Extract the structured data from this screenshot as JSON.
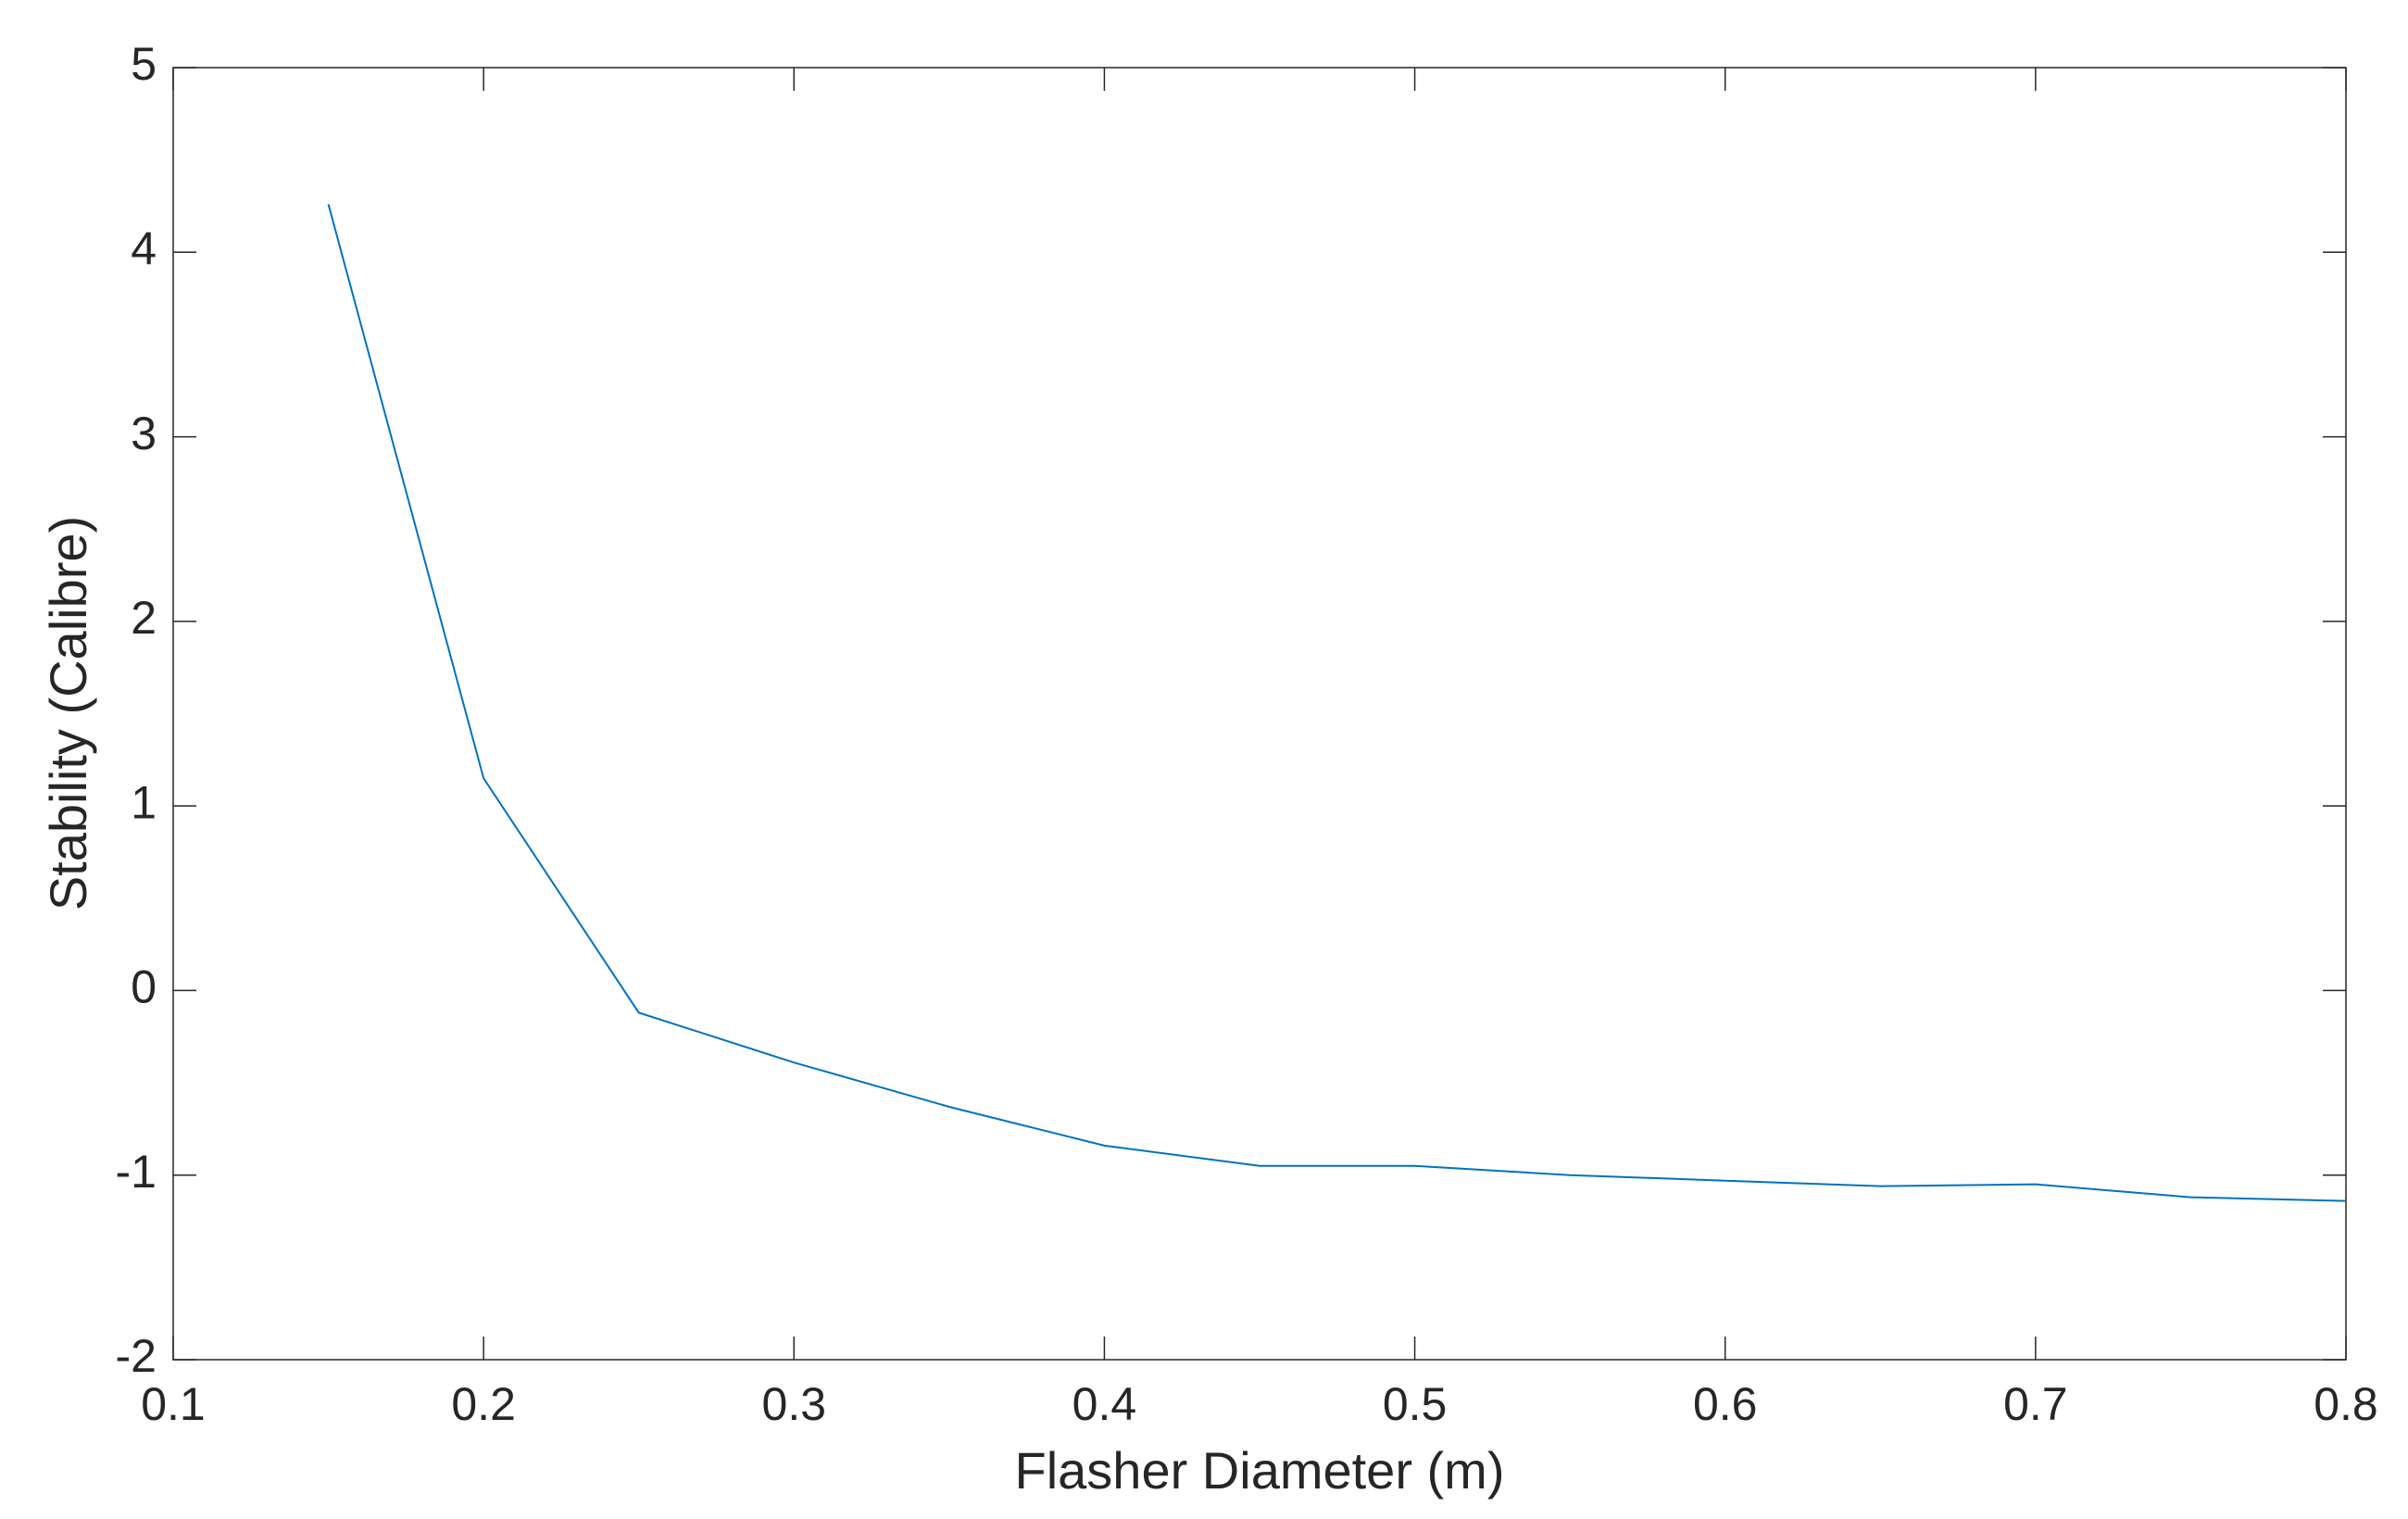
{
  "chart_data": {
    "type": "line",
    "x_label": "Flasher Diameter (m)",
    "y_label": "Stability (Calibre)",
    "x": [
      0.15,
      0.2,
      0.25,
      0.3,
      0.35,
      0.4,
      0.45,
      0.5,
      0.55,
      0.6,
      0.65,
      0.7,
      0.75,
      0.8
    ],
    "series": [
      {
        "color": "#0072bd",
        "values": [
          4.26,
          1.15,
          -0.12,
          -0.39,
          -0.63,
          -0.84,
          -0.95,
          -0.95,
          -1.0,
          -1.03,
          -1.06,
          -1.05,
          -1.12,
          -1.14
        ]
      }
    ],
    "xlim": [
      0.1,
      0.8
    ],
    "xticks": [
      0.1,
      0.2,
      0.3,
      0.4,
      0.5,
      0.6,
      0.7,
      0.8
    ],
    "ylim": [
      -2,
      5
    ],
    "yticks": [
      -2,
      -1,
      0,
      1,
      2,
      3,
      4,
      5
    ],
    "grid": false
  }
}
